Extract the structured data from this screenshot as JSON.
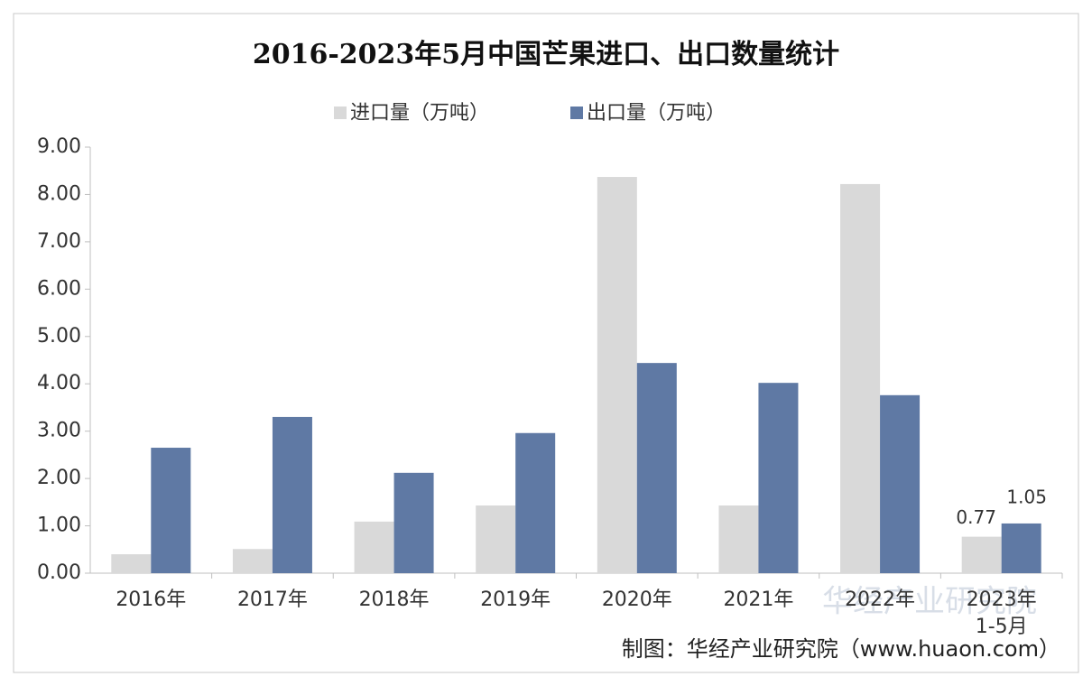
{
  "chart_data": {
    "type": "bar",
    "title": "2016-2023年5月中国芒果进口、出口数量统计",
    "categories": [
      "2016年",
      "2017年",
      "2018年",
      "2019年",
      "2020年",
      "2021年",
      "2022年",
      "2023年\n1-5月"
    ],
    "series": [
      {
        "name": "进口量（万吨）",
        "color": "#d9d9d9",
        "values": [
          0.4,
          0.51,
          1.09,
          1.43,
          8.37,
          1.43,
          8.22,
          0.77
        ],
        "value_labels": [
          null,
          null,
          null,
          null,
          null,
          null,
          null,
          "0.77"
        ]
      },
      {
        "name": "出口量（万吨）",
        "color": "#5f79a4",
        "values": [
          2.65,
          3.3,
          2.12,
          2.96,
          4.44,
          4.02,
          3.76,
          1.05
        ],
        "value_labels": [
          null,
          null,
          null,
          null,
          null,
          null,
          null,
          "1.05"
        ]
      }
    ],
    "ylim": [
      0,
      9
    ],
    "yticks": [
      {
        "value": 0,
        "label": "0.00"
      },
      {
        "value": 1,
        "label": "1.00"
      },
      {
        "value": 2,
        "label": "2.00"
      },
      {
        "value": 3,
        "label": "3.00"
      },
      {
        "value": 4,
        "label": "4.00"
      },
      {
        "value": 5,
        "label": "5.00"
      },
      {
        "value": 6,
        "label": "6.00"
      },
      {
        "value": 7,
        "label": "7.00"
      },
      {
        "value": 8,
        "label": "8.00"
      },
      {
        "value": 9,
        "label": "9.00"
      }
    ],
    "legend": "top",
    "watermark": "华经产业研究院",
    "source": "制图：华经产业研究院（www.huaon.com）"
  }
}
